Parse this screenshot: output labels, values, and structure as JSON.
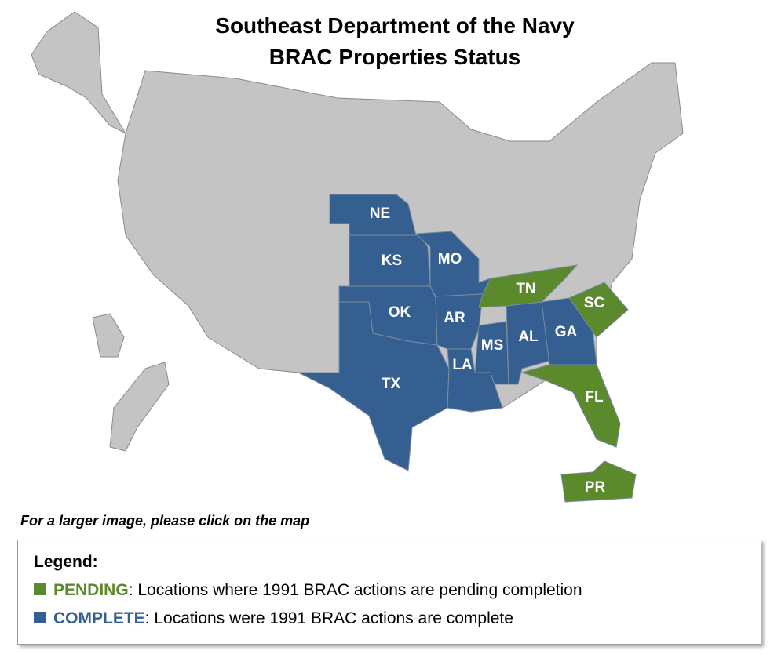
{
  "title": [
    "Southeast Department of the Navy",
    "BRAC Properties Status"
  ],
  "note": "For a larger image, please click on the map",
  "legend": {
    "heading": "Legend:",
    "items": [
      {
        "name": "PENDING",
        "color": "#5b8a2d",
        "text": ": Locations where 1991 BRAC actions are pending completion"
      },
      {
        "name": "COMPLETE",
        "color": "#355f91",
        "text": ": Locations were 1991 BRAC actions are complete"
      }
    ]
  },
  "states": [
    {
      "label": "NE",
      "legend_item": 1
    },
    {
      "label": "KS",
      "legend_item": 1
    },
    {
      "label": "MO",
      "legend_item": 1
    },
    {
      "label": "OK",
      "legend_item": 1
    },
    {
      "label": "AR",
      "legend_item": 1
    },
    {
      "label": "TX",
      "legend_item": 1
    },
    {
      "label": "LA",
      "legend_item": 1
    },
    {
      "label": "MS",
      "legend_item": 1
    },
    {
      "label": "AL",
      "legend_item": 1
    },
    {
      "label": "GA",
      "legend_item": 1
    },
    {
      "label": "TN",
      "legend_item": 0
    },
    {
      "label": "SC",
      "legend_item": 0
    },
    {
      "label": "FL",
      "legend_item": 0
    },
    {
      "label": "PR",
      "legend_item": 0
    }
  ]
}
